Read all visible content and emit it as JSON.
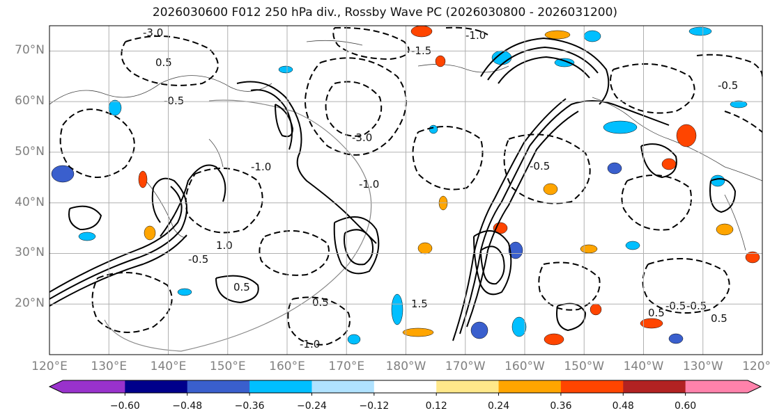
{
  "title": "2026030600 F012 250 hPa div., Rossby Wave PC (2026030800 - 2026031200)",
  "map": {
    "lat_labels": [
      "70°N",
      "60°N",
      "50°N",
      "40°N",
      "30°N",
      "20°N"
    ],
    "lat_values": [
      70,
      60,
      50,
      40,
      30,
      20
    ],
    "lon_labels": [
      "120°E",
      "130°E",
      "140°E",
      "150°E",
      "160°E",
      "170°E",
      "180°W",
      "170°W",
      "160°W",
      "150°W",
      "140°W",
      "130°W",
      "120°W"
    ],
    "lon_values": [
      120,
      130,
      140,
      150,
      160,
      170,
      180,
      190,
      200,
      210,
      220,
      230,
      240
    ],
    "lat_range": [
      10,
      75
    ],
    "lon_range": [
      120,
      240
    ],
    "contour_labels": [
      "-3.0",
      "-1.0",
      "-1.5",
      "-0.5",
      "0.5",
      "-3.0",
      "-1.0",
      "-1.0",
      "0.5",
      "-0.5",
      "0.5",
      "-0.5",
      "1.0",
      "1.5",
      "-1.0",
      "0.5",
      "-0.5",
      "-0.5",
      "-0.5",
      "0.5"
    ]
  },
  "colorbar": {
    "ticks": [
      "−0.60",
      "−0.48",
      "−0.36",
      "−0.24",
      "−0.12",
      "0.12",
      "0.24",
      "0.36",
      "0.48",
      "0.60"
    ],
    "tick_values": [
      -0.6,
      -0.48,
      -0.36,
      -0.24,
      -0.12,
      0.12,
      0.24,
      0.36,
      0.48,
      0.6
    ],
    "colors": [
      "#9932cc",
      "#00008b",
      "#3a5fcd",
      "#00bfff",
      "#b0e2ff",
      "#ffffff",
      "#ffe88a",
      "#ffa500",
      "#ff4500",
      "#b22222",
      "#ff82ab"
    ]
  }
}
